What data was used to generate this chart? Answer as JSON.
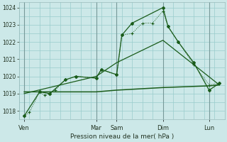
{
  "title": "",
  "xlabel": "Pression niveau de la mer( hPa )",
  "bg_color": "#cce8e8",
  "grid_color": "#99cccc",
  "line_color": "#1a5c1a",
  "ylim": [
    1017.5,
    1024.3
  ],
  "yticks": [
    1018,
    1019,
    1020,
    1021,
    1022,
    1023,
    1024
  ],
  "xlim": [
    0,
    20
  ],
  "day_labels": [
    "Ven",
    "Mar",
    "Sam",
    "Dim",
    "Lun"
  ],
  "day_x": [
    0.5,
    7.5,
    9.5,
    14.0,
    18.5
  ],
  "vline_x": [
    0.5,
    7.5,
    9.5,
    14.0,
    18.5
  ],
  "s1_x": [
    0.5,
    1.0,
    2.0,
    2.5,
    3.0,
    3.5,
    4.5,
    5.5,
    7.5,
    8.0,
    9.5,
    10.0,
    11.0,
    12.0,
    13.0,
    14.0,
    14.5,
    15.5,
    17.0,
    18.5,
    19.5
  ],
  "s1_y": [
    1017.7,
    1017.9,
    1019.1,
    1018.9,
    1019.0,
    1019.2,
    1019.8,
    1020.0,
    1019.9,
    1020.4,
    1020.1,
    1022.4,
    1022.5,
    1023.1,
    1023.1,
    1023.8,
    1022.9,
    1022.0,
    1020.7,
    1019.5,
    1019.6
  ],
  "s2_x": [
    0.5,
    2.0,
    3.0,
    4.5,
    5.5,
    7.5,
    8.0,
    9.5,
    10.0,
    11.0,
    14.0,
    14.5,
    15.5,
    17.0,
    18.5,
    19.5
  ],
  "s2_y": [
    1017.7,
    1019.1,
    1019.0,
    1019.8,
    1020.0,
    1019.9,
    1020.4,
    1020.1,
    1022.4,
    1023.1,
    1024.0,
    1022.9,
    1022.0,
    1020.8,
    1019.2,
    1019.6
  ],
  "s3_x": [
    0.5,
    7.5,
    9.5,
    14.0,
    18.5,
    19.5
  ],
  "s3_y": [
    1019.1,
    1019.1,
    1019.2,
    1019.35,
    1019.45,
    1019.5
  ],
  "s4_x": [
    0.5,
    7.5,
    9.5,
    14.0,
    19.5
  ],
  "s4_y": [
    1019.0,
    1020.0,
    1020.8,
    1022.1,
    1019.5
  ]
}
